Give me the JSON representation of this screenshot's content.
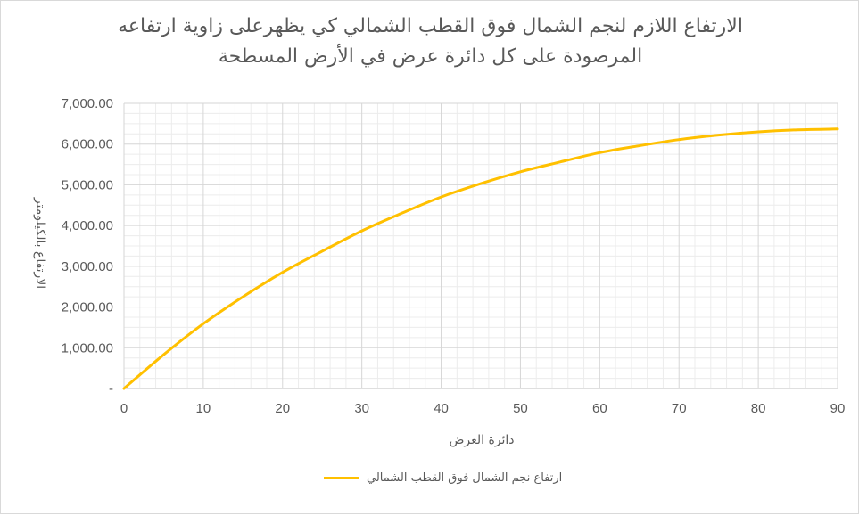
{
  "chart_data": {
    "type": "line",
    "title_line1": "الارتفاع اللازم لنجم الشمال فوق القطب الشمالي كي يظهرعلى زاوية ارتفاعه",
    "title_line2": "المرصودة على كل دائرة عرض في الأرض المسطحة",
    "xlabel": "دائرة العرض",
    "ylabel": "الارتفاع بالكيلومتر",
    "xlim": [
      0,
      90
    ],
    "ylim": [
      0,
      7000
    ],
    "x_ticks": [
      "0",
      "10",
      "20",
      "30",
      "40",
      "50",
      "60",
      "70",
      "80",
      "90"
    ],
    "y_ticks": [
      "-",
      "1,000.00",
      "2,000.00",
      "3,000.00",
      "4,000.00",
      "5,000.00",
      "6,000.00",
      "7,000.00"
    ],
    "grid": true,
    "legend_position": "bottom",
    "series": [
      {
        "name": "ارتفاع نجم الشمال فوق القطب الشمالي",
        "color": "#FFC000",
        "x": [
          0,
          5,
          10,
          15,
          20,
          25,
          30,
          35,
          40,
          45,
          50,
          55,
          60,
          65,
          70,
          75,
          80,
          85,
          90
        ],
        "y": [
          0,
          830,
          1590,
          2250,
          2850,
          3370,
          3870,
          4300,
          4700,
          5030,
          5320,
          5560,
          5790,
          5960,
          6110,
          6220,
          6300,
          6350,
          6370
        ]
      }
    ]
  }
}
